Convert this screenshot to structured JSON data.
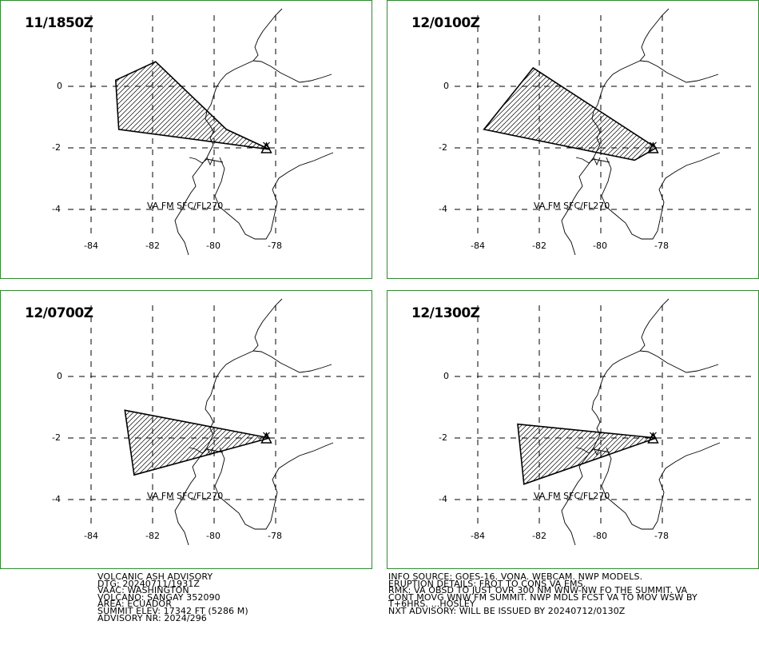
{
  "panels": [
    {
      "time": "11/1850Z",
      "label": "VA FM SFC/FL270",
      "polygon": [
        [
          -83.2,
          0.2
        ],
        [
          -81.9,
          0.8
        ],
        [
          -79.6,
          -1.4
        ],
        [
          -78.2,
          -2.05
        ],
        [
          -83.1,
          -1.4
        ]
      ]
    },
    {
      "time": "12/0100Z",
      "label": "VA FM SFC/FL270",
      "polygon": [
        [
          -82.2,
          0.6
        ],
        [
          -78.2,
          -2.0
        ],
        [
          -78.9,
          -2.4
        ],
        [
          -83.8,
          -1.4
        ]
      ]
    },
    {
      "time": "12/0700Z",
      "label": "VA FM SFC/FL270",
      "polygon": [
        [
          -82.9,
          -1.1
        ],
        [
          -78.2,
          -2.0
        ],
        [
          -82.6,
          -3.2
        ]
      ]
    },
    {
      "time": "12/1300Z",
      "label": "VA FM SFC/FL270",
      "polygon": [
        [
          -82.7,
          -1.55
        ],
        [
          -78.2,
          -2.0
        ],
        [
          -82.5,
          -3.5
        ]
      ]
    }
  ],
  "axes": {
    "lon_ticks": [
      -84,
      -82,
      -80,
      -78
    ],
    "lat_ticks": [
      0,
      -2,
      -4
    ],
    "lon_labels": [
      "-84",
      "-82",
      "-80",
      "-78"
    ],
    "lat_labels": [
      "0",
      "-2",
      "-4"
    ]
  },
  "volcano": {
    "name": "Sangay",
    "lon": -78.3,
    "lat": -2.0
  },
  "advisory_left": [
    "VOLCANIC ASH ADVISORY",
    "DTG: 20240711/1931Z",
    "VAAC: WASHINGTON",
    "VOLCANO: SANGAY 352090",
    "AREA: ECUADOR",
    "SUMMIT ELEV: 17342 FT (5286 M)",
    "ADVISORY NR: 2024/296"
  ],
  "advisory_right": [
    "INFO SOURCE: GOES-16. VONA. WEBCAM. NWP MODELS.",
    "ERUPTION DETAILS: FRQT TO CONS VA EMS.",
    "RMK: VA OBSD TO JUST OVR 300 NM WNW-NW FO THE SUMMIT. VA",
    "CONT MOVG WNW FM SUMMIT. NWP MDLS FCST VA TO MOV WSW BY",
    "T+6HRS. ...HOSLEY",
    "NXT ADVISORY: WILL BE ISSUED BY 20240712/0130Z"
  ],
  "colors": {
    "border": "#2e8b2e",
    "ink": "#000000",
    "background": "#ffffff"
  }
}
